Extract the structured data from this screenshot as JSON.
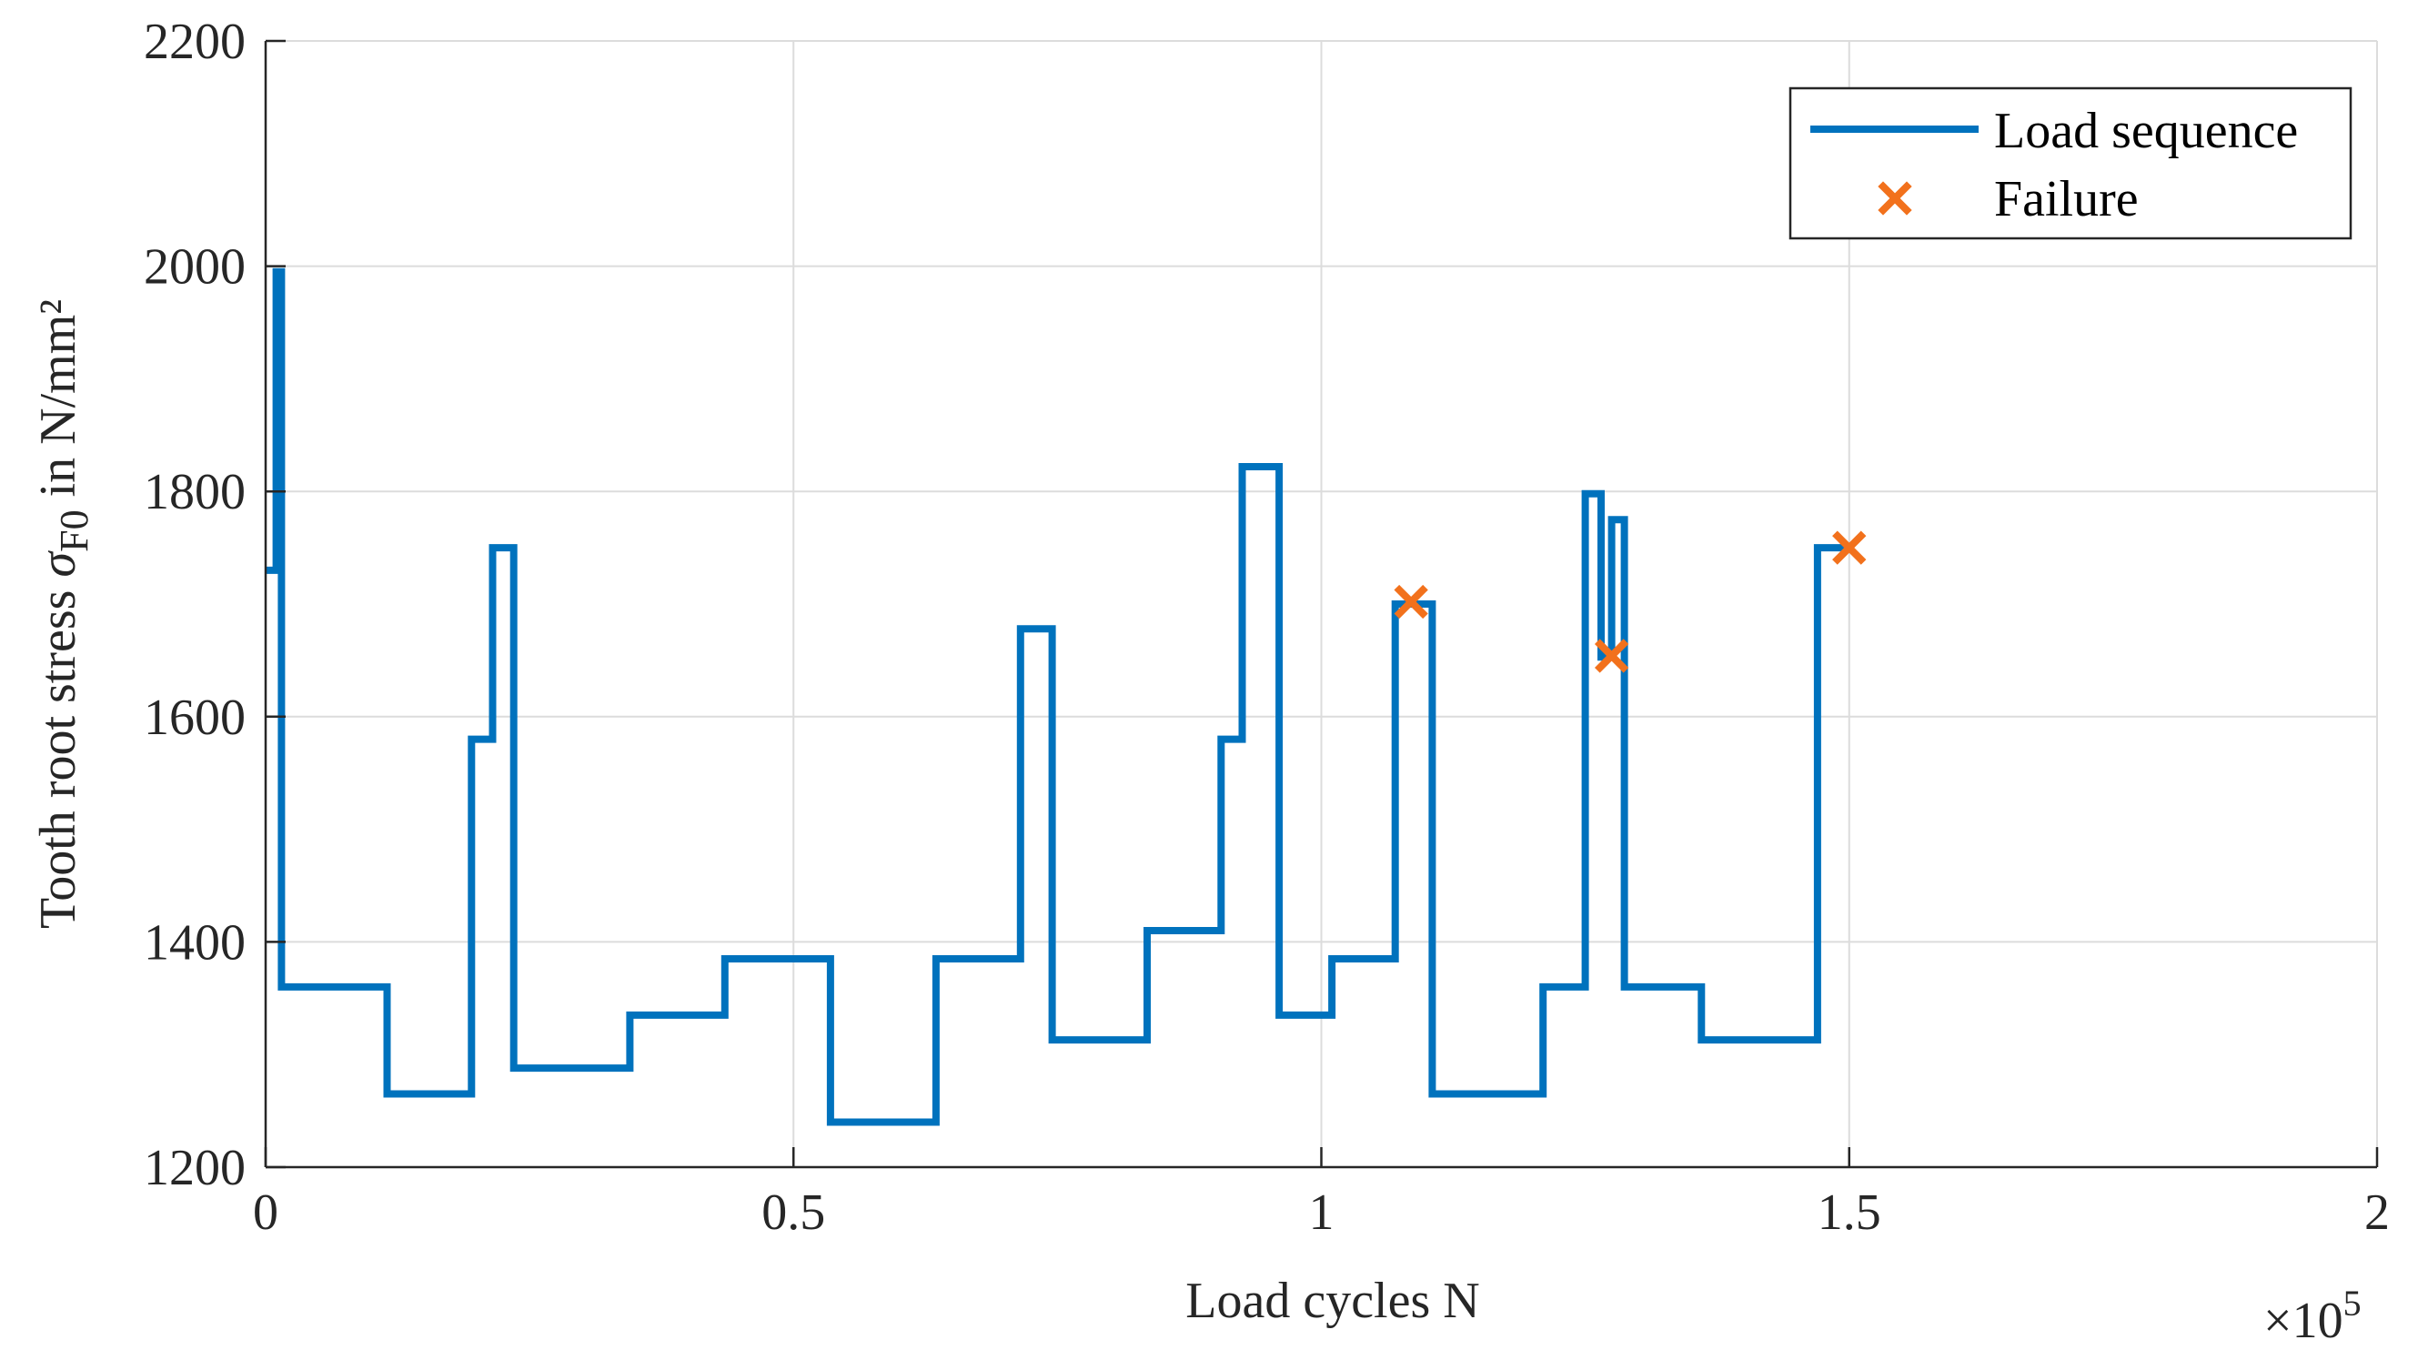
{
  "chart_data": {
    "type": "line",
    "title": "",
    "xlabel": "Load cycles N",
    "ylabel": {
      "prefix": "Tooth root stress ",
      "symbol": "σ",
      "subscript": "F0",
      "suffix": " in N/mm²"
    },
    "x_scale_label": {
      "base": "×10",
      "exponent": "5"
    },
    "xlim": [
      0,
      200000
    ],
    "ylim": [
      1200,
      2200
    ],
    "x_ticks": [
      0,
      50000,
      100000,
      150000,
      200000
    ],
    "x_tick_labels": [
      "0",
      "0.5",
      "1",
      "1.5",
      "2"
    ],
    "y_ticks": [
      1200,
      1400,
      1600,
      1800,
      2000,
      2200
    ],
    "y_tick_labels": [
      "1200",
      "1400",
      "1600",
      "1800",
      "2000",
      "2200"
    ],
    "grid": true,
    "legend_position": "top-right",
    "legend": {
      "load_label": "Load sequence",
      "failure_label": "Failure"
    },
    "colors": {
      "load": "#0072BD",
      "failure": "#F2711C",
      "axis": "#262626",
      "grid": "#dcdcdc"
    },
    "series": [
      {
        "name": "Load sequence",
        "style": "step",
        "x": [
          0,
          1000,
          1000,
          1500,
          1500,
          11500,
          11500,
          19500,
          19500,
          21500,
          21500,
          23500,
          23500,
          29500,
          29500,
          34500,
          34500,
          39500,
          39500,
          43500,
          43500,
          53500,
          53500,
          58500,
          58500,
          63500,
          63500,
          68500,
          68500,
          71500,
          71500,
          74500,
          74500,
          79500,
          79500,
          83500,
          83500,
          86500,
          86500,
          90500,
          90500,
          92500,
          92500,
          96000,
          96000,
          101000,
          101000,
          107000,
          107000,
          110500,
          110500,
          121000,
          121000,
          125000,
          125000,
          126500,
          126500,
          127500,
          127500,
          128700,
          128700,
          136000,
          136000,
          141000,
          141000,
          147000,
          147000,
          150000
        ],
        "y": [
          1730,
          1730,
          1995,
          1995,
          1360,
          1360,
          1265,
          1265,
          1580,
          1580,
          1750,
          1750,
          1288,
          1288,
          1288,
          1288,
          1335,
          1335,
          1335,
          1335,
          1385,
          1385,
          1240,
          1240,
          1240,
          1240,
          1385,
          1385,
          1385,
          1385,
          1678,
          1678,
          1313,
          1313,
          1313,
          1313,
          1410,
          1410,
          1410,
          1410,
          1580,
          1580,
          1822,
          1822,
          1335,
          1335,
          1385,
          1385,
          1700,
          1700,
          1265,
          1265,
          1360,
          1360,
          1798,
          1798,
          1653,
          1653,
          1775,
          1775,
          1360,
          1360,
          1313,
          1313,
          1313,
          1313,
          1750,
          1750
        ]
      },
      {
        "name": "Failure",
        "style": "marker-x",
        "x": [
          108500,
          127500,
          150000
        ],
        "y": [
          1702,
          1654,
          1750
        ]
      }
    ]
  }
}
